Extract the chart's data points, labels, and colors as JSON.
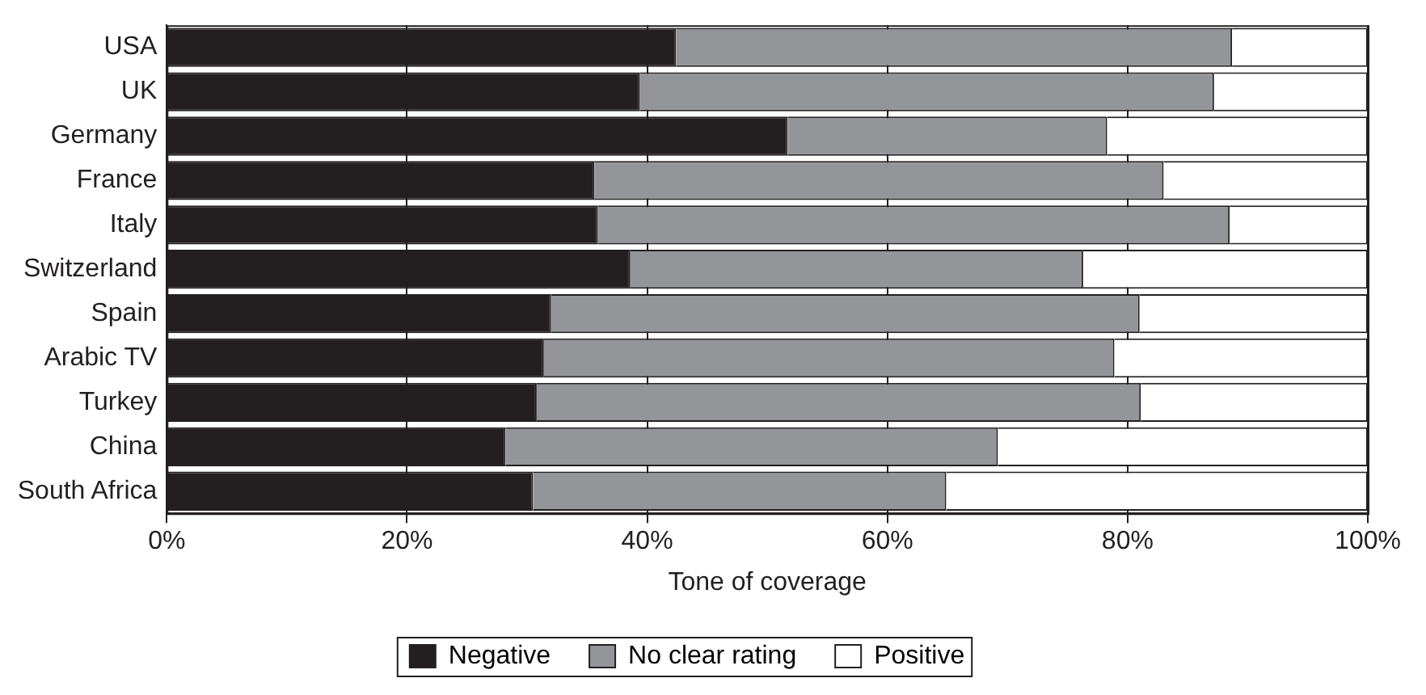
{
  "chart_data": {
    "type": "bar",
    "orientation": "horizontal",
    "stacked": true,
    "xlabel": "Tone of coverage",
    "categories": [
      "USA",
      "UK",
      "Germany",
      "France",
      "Italy",
      "Switzerland",
      "Spain",
      "Arabic TV",
      "Turkey",
      "China",
      "South Africa"
    ],
    "series": [
      {
        "name": "Negative",
        "color": "#231f20",
        "values": [
          42.4,
          39.4,
          51.7,
          35.6,
          35.9,
          38.6,
          32.0,
          31.4,
          30.8,
          28.2,
          30.5
        ]
      },
      {
        "name": "No clear rating",
        "color": "#939598",
        "values": [
          46.3,
          47.8,
          26.6,
          47.4,
          52.6,
          37.7,
          49.0,
          47.5,
          50.3,
          41.0,
          34.4
        ]
      },
      {
        "name": "Positive",
        "color": "#ffffff",
        "values": [
          11.3,
          12.8,
          21.7,
          17.0,
          11.5,
          23.7,
          19.0,
          21.1,
          18.9,
          30.8,
          35.1
        ]
      }
    ],
    "xlim": [
      0,
      100
    ],
    "xticks": [
      {
        "value": 0,
        "label": "0%"
      },
      {
        "value": 20,
        "label": "20%"
      },
      {
        "value": 40,
        "label": "40%"
      },
      {
        "value": 60,
        "label": "60%"
      },
      {
        "value": 80,
        "label": "80%"
      },
      {
        "value": 100,
        "label": "100%"
      }
    ],
    "grid": "x",
    "legend": "bottom"
  }
}
